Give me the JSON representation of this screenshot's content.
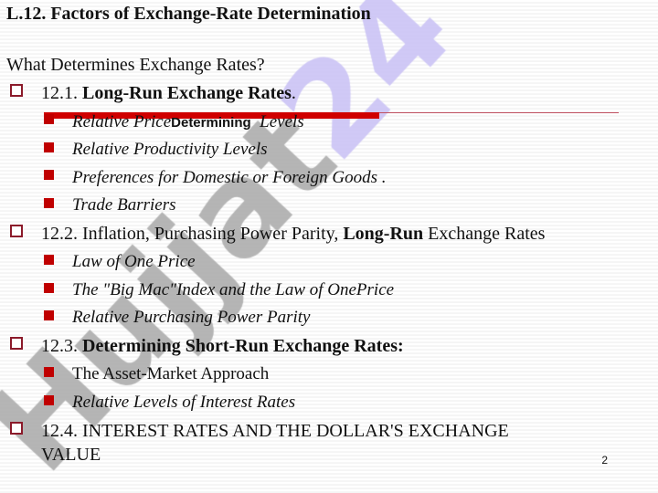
{
  "title": "L.12. Factors of Exchange-Rate Determination",
  "subtitle": "What Determines Exchange Rates?",
  "sections": [
    {
      "num": "12.1. ",
      "bold": "Long-Run Exchange Rates",
      "rest": ".",
      "items": [
        {
          "a": "Relative Price",
          "b": "Determining",
          "c": "  Levels"
        },
        {
          "a": "Relative Productivity Levels"
        },
        {
          "a": "Preferences for Domestic or Foreign Goods ."
        },
        {
          "a": "Trade Barriers"
        }
      ]
    },
    {
      "num": "12.2. Inflation, Purchasing Power Parity, ",
      "bold": "Long-Run",
      "rest": " Exchange Rates",
      "items": [
        {
          "a": "Law of One Price"
        },
        {
          "a": "The \"Big Mac\"Index and the Law of OnePrice"
        },
        {
          "a": "Relative Purchasing Power Parity"
        }
      ]
    },
    {
      "num": "12.3. ",
      "bold": "Determining Short-Run Exchange Rates:",
      "rest": "",
      "items": [
        {
          "a": "The Asset-Market Approach"
        },
        {
          "a": "Relative Levels of Interest Rates"
        }
      ]
    },
    {
      "num": "12.4. INTEREST RATES AND THE DOLLAR'S EXCHANGE",
      "line2": "VALUE"
    }
  ],
  "page_number": "2",
  "watermark": {
    "text1": "Hujjat",
    "text2": "24",
    "color1": "#a8a8a8",
    "color2": "#c8c0f4"
  },
  "colors": {
    "accent": "#c00000",
    "hollow_bullet": "#8b1a2a"
  }
}
